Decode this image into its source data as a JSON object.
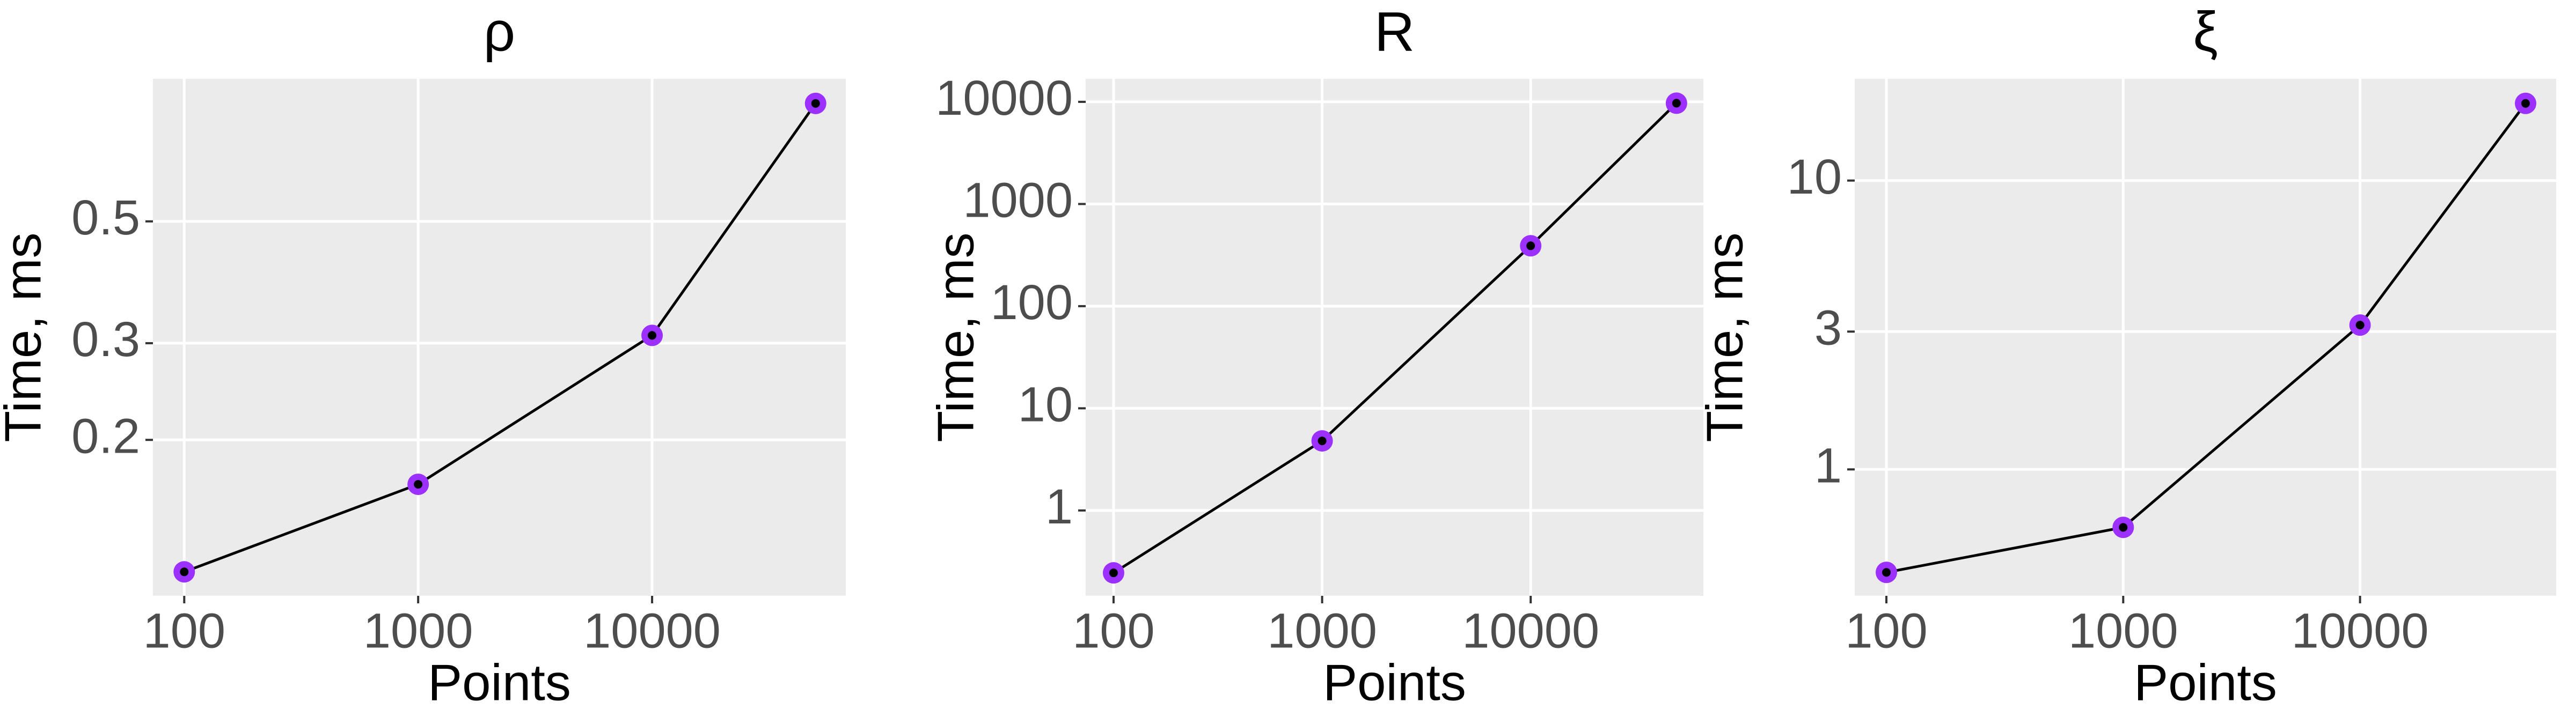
{
  "chart_data": [
    {
      "type": "line",
      "title": "ρ",
      "xlabel": "Points",
      "ylabel": "Time, ms",
      "x": [
        100,
        1000,
        10000,
        50000
      ],
      "values": [
        0.115,
        0.166,
        0.31,
        0.82
      ],
      "color": "#000000",
      "marker_color": "#9b30ff",
      "xlim": [
        73.5,
        67300
      ],
      "xticks": [
        100,
        1000,
        10000
      ],
      "ylim": [
        0.104,
        0.909
      ],
      "yticks": [
        0.2,
        0.3,
        0.5
      ],
      "log_x": true,
      "log_y": true,
      "grid": true
    },
    {
      "type": "line",
      "title": "R",
      "xlabel": "Points",
      "ylabel": "Time, ms",
      "x": [
        100,
        1000,
        10000,
        50000
      ],
      "values": [
        0.245,
        4.8,
        390,
        9700
      ],
      "color": "#000000",
      "marker_color": "#9b30ff",
      "xlim": [
        73.5,
        67300
      ],
      "xticks": [
        100,
        1000,
        10000
      ],
      "ylim": [
        0.146,
        16800
      ],
      "yticks": [
        1,
        10,
        100,
        1000,
        10000
      ],
      "log_x": true,
      "log_y": true,
      "grid": true
    },
    {
      "type": "line",
      "title": "ξ",
      "xlabel": "Points",
      "ylabel": "Time, ms",
      "x": [
        100,
        1000,
        10000,
        50000
      ],
      "values": [
        0.44,
        0.63,
        3.16,
        18.5
      ],
      "color": "#000000",
      "marker_color": "#9b30ff",
      "xlim": [
        73.5,
        67300
      ],
      "xticks": [
        100,
        1000,
        10000
      ],
      "ylim": [
        0.365,
        22.5
      ],
      "yticks": [
        1,
        3,
        10
      ],
      "log_x": true,
      "log_y": true,
      "grid": true
    }
  ]
}
